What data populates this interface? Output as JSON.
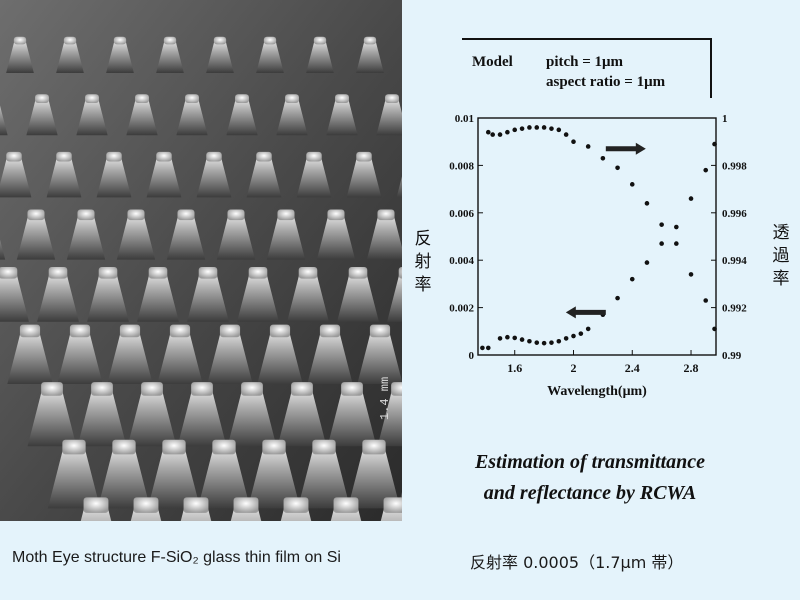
{
  "photo": {
    "description_icon": "sem-micrograph",
    "scale_text": "1.4 mm"
  },
  "captions": {
    "left": "Moth Eye structure F-SiO₂ glass thin film on Si",
    "right": "反射率 0.0005（1.7μm 帯）"
  },
  "model": {
    "label": "Model",
    "pitch": "pitch = 1μm",
    "aspect": "aspect ratio = 1μm"
  },
  "side_labels": {
    "left": [
      "反",
      "射",
      "率"
    ],
    "right": [
      "透",
      "過",
      "率"
    ]
  },
  "estimation_title": {
    "line1": "Estimation of transmittance",
    "line2": "and reflectance by RCWA"
  },
  "chart_data": {
    "type": "scatter",
    "title": "",
    "xlabel": "Wavelength(μm)",
    "ylabel_left": "反射率",
    "ylabel_right": "透過率",
    "xlim": [
      1.35,
      2.97
    ],
    "ylim_left": [
      0,
      0.01
    ],
    "ylim_right": [
      0.99,
      1.0
    ],
    "x_ticks": [
      "1.6",
      "2",
      "2.4",
      "2.8"
    ],
    "x_tick_values": [
      1.6,
      2.0,
      2.4,
      2.8
    ],
    "y_left_ticks": [
      "0",
      "0.002",
      "0.004",
      "0.006",
      "0.008",
      "0.01"
    ],
    "y_left_tick_values": [
      0,
      0.002,
      0.004,
      0.006,
      0.008,
      0.01
    ],
    "y_right_ticks": [
      "0.99",
      "0.992",
      "0.994",
      "0.996",
      "0.998",
      "1"
    ],
    "y_right_tick_values": [
      0.99,
      0.992,
      0.994,
      0.996,
      0.998,
      1.0
    ],
    "series": [
      {
        "name": "Reflectance",
        "axis": "left",
        "arrow": "left",
        "x": [
          1.38,
          1.42,
          1.5,
          1.55,
          1.6,
          1.65,
          1.7,
          1.75,
          1.8,
          1.85,
          1.9,
          1.95,
          2.0,
          2.05,
          2.1,
          2.2,
          2.3,
          2.4,
          2.5,
          2.6,
          2.7,
          2.8,
          2.9,
          2.96
        ],
        "values": [
          0.0003,
          0.0003,
          0.0007,
          0.00075,
          0.00072,
          0.00065,
          0.00058,
          0.00052,
          0.0005,
          0.00052,
          0.00058,
          0.0007,
          0.0008,
          0.0009,
          0.0011,
          0.0017,
          0.0024,
          0.0032,
          0.0039,
          0.0047,
          0.0054,
          0.0066,
          0.0078,
          0.0089
        ]
      },
      {
        "name": "Transmittance",
        "axis": "right",
        "arrow": "right",
        "x": [
          1.42,
          1.45,
          1.5,
          1.55,
          1.6,
          1.65,
          1.7,
          1.75,
          1.8,
          1.85,
          1.9,
          1.95,
          2.0,
          2.1,
          2.2,
          2.3,
          2.4,
          2.5,
          2.6,
          2.7,
          2.8,
          2.9,
          2.96
        ],
        "values": [
          0.9994,
          0.9993,
          0.9993,
          0.9994,
          0.9995,
          0.99955,
          0.9996,
          0.9996,
          0.9996,
          0.99955,
          0.9995,
          0.9993,
          0.999,
          0.9988,
          0.9983,
          0.9979,
          0.9972,
          0.9964,
          0.9955,
          0.9947,
          0.9934,
          0.9923,
          0.9911
        ]
      }
    ]
  }
}
